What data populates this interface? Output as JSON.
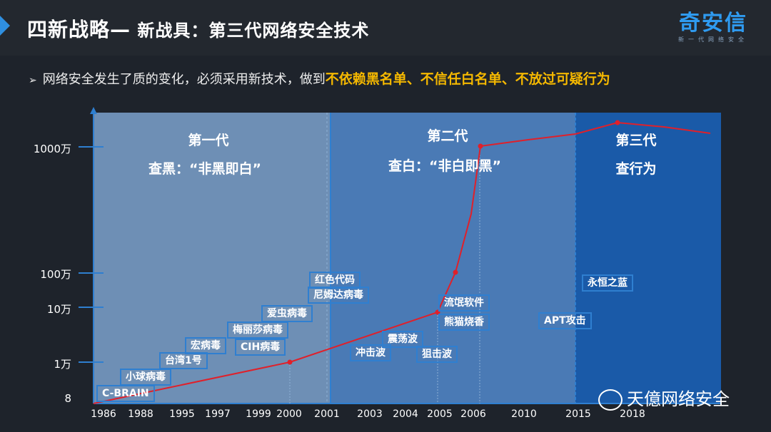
{
  "header": {
    "title_main": "四新战略—",
    "title_sub": " 新战具：第三代网络安全技术",
    "logo_brand": "奇安信",
    "logo_slogan": "新一代网络安全"
  },
  "bullet": {
    "text": "网络安全发生了质的变化，必须采用新技术，做到",
    "highlight": "不依赖黑名单、不信任白名单、不放过可疑行为"
  },
  "generations": [
    {
      "name": "第一代",
      "desc": "查黑：“非黑即白”"
    },
    {
      "name": "第二代",
      "desc": "查白：“非白即黑”"
    },
    {
      "name": "第三代",
      "desc": "查行为"
    }
  ],
  "chart_data": {
    "type": "line",
    "y_tick_labels": [
      "1000万",
      "100万",
      "10万",
      "1万",
      "8"
    ],
    "x_tick_labels": [
      "1986",
      "1988",
      "1995",
      "1997",
      "1999",
      "2000",
      "2001",
      "2003",
      "2004",
      "2005",
      "2006",
      "2010",
      "2015",
      "2018"
    ],
    "annotations": [
      "C-BRAIN",
      "小球病毒",
      "台湾1号",
      "宏病毒",
      "CIH病毒",
      "梅丽莎病毒",
      "爱虫病毒",
      "红色代码",
      "尼姆达病毒",
      "冲击波",
      "震荡波",
      "狙击波",
      "流氓软件",
      "熊猫烧香",
      "APT攻击",
      "永恒之蓝"
    ],
    "colors": {
      "line": "#e0202a",
      "gen1_bg": "#6e8fb5",
      "gen2_bg": "#4a7ab5",
      "gen3_bg": "#1a5aa8",
      "axis": "#2f7fd0",
      "highlight": "#f5b800"
    }
  },
  "watermark": "天億网络安全"
}
